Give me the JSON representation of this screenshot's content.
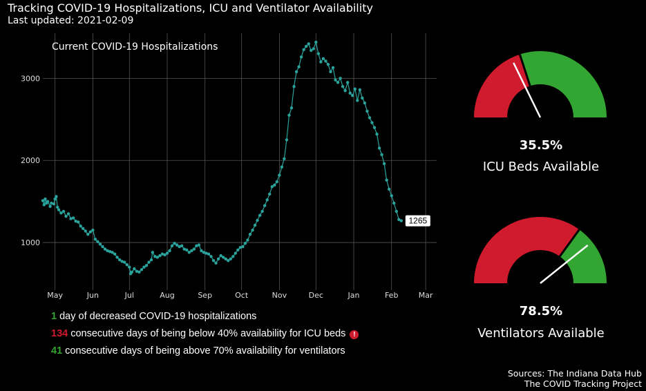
{
  "header": {
    "title": "Tracking COVID-19 Hospitalizations, ICU and Ventilator Availability",
    "subtitle": "Last updated: 2021-02-09"
  },
  "chart_data": {
    "type": "line",
    "title": "Current COVID-19 Hospitalizations",
    "xlabel": "",
    "ylabel": "",
    "x_tick_labels": [
      "May",
      "Jun",
      "Jul",
      "Aug",
      "Sep",
      "Oct",
      "Nov",
      "Dec",
      "Jan",
      "Feb",
      "Mar"
    ],
    "x_tick_dates": [
      "2020-05-01",
      "2020-06-01",
      "2020-07-01",
      "2020-08-01",
      "2020-09-01",
      "2020-10-01",
      "2020-11-01",
      "2020-12-01",
      "2021-01-01",
      "2021-02-01",
      "2021-03-01"
    ],
    "xlim": [
      "2020-04-21",
      "2021-03-10"
    ],
    "y_ticks": [
      1000,
      2000,
      3000
    ],
    "ylim": [
      420,
      3550
    ],
    "grid": true,
    "last_value_label": "1265",
    "series_color": "#2aa39d",
    "points": [
      [
        "2020-04-21",
        1510
      ],
      [
        "2020-04-22",
        1460
      ],
      [
        "2020-04-23",
        1530
      ],
      [
        "2020-04-24",
        1480
      ],
      [
        "2020-04-25",
        1500
      ],
      [
        "2020-04-27",
        1440
      ],
      [
        "2020-04-28",
        1480
      ],
      [
        "2020-04-30",
        1470
      ],
      [
        "2020-05-01",
        1530
      ],
      [
        "2020-05-02",
        1560
      ],
      [
        "2020-05-03",
        1430
      ],
      [
        "2020-05-04",
        1400
      ],
      [
        "2020-05-06",
        1360
      ],
      [
        "2020-05-08",
        1380
      ],
      [
        "2020-05-10",
        1320
      ],
      [
        "2020-05-12",
        1350
      ],
      [
        "2020-05-14",
        1290
      ],
      [
        "2020-05-16",
        1300
      ],
      [
        "2020-05-18",
        1260
      ],
      [
        "2020-05-20",
        1250
      ],
      [
        "2020-05-22",
        1200
      ],
      [
        "2020-05-24",
        1170
      ],
      [
        "2020-05-26",
        1140
      ],
      [
        "2020-05-28",
        1100
      ],
      [
        "2020-05-30",
        1130
      ],
      [
        "2020-06-01",
        1150
      ],
      [
        "2020-06-03",
        1040
      ],
      [
        "2020-06-05",
        1010
      ],
      [
        "2020-06-07",
        980
      ],
      [
        "2020-06-09",
        950
      ],
      [
        "2020-06-11",
        920
      ],
      [
        "2020-06-13",
        900
      ],
      [
        "2020-06-15",
        890
      ],
      [
        "2020-06-17",
        880
      ],
      [
        "2020-06-19",
        860
      ],
      [
        "2020-06-21",
        820
      ],
      [
        "2020-06-23",
        790
      ],
      [
        "2020-06-25",
        770
      ],
      [
        "2020-06-27",
        760
      ],
      [
        "2020-06-29",
        730
      ],
      [
        "2020-07-01",
        700
      ],
      [
        "2020-07-02",
        620
      ],
      [
        "2020-07-03",
        640
      ],
      [
        "2020-07-05",
        680
      ],
      [
        "2020-07-07",
        650
      ],
      [
        "2020-07-09",
        640
      ],
      [
        "2020-07-11",
        670
      ],
      [
        "2020-07-13",
        700
      ],
      [
        "2020-07-15",
        720
      ],
      [
        "2020-07-17",
        760
      ],
      [
        "2020-07-19",
        790
      ],
      [
        "2020-07-20",
        880
      ],
      [
        "2020-07-22",
        830
      ],
      [
        "2020-07-24",
        820
      ],
      [
        "2020-07-26",
        840
      ],
      [
        "2020-07-28",
        860
      ],
      [
        "2020-07-30",
        850
      ],
      [
        "2020-08-01",
        870
      ],
      [
        "2020-08-03",
        900
      ],
      [
        "2020-08-05",
        960
      ],
      [
        "2020-08-07",
        990
      ],
      [
        "2020-08-09",
        970
      ],
      [
        "2020-08-11",
        950
      ],
      [
        "2020-08-13",
        960
      ],
      [
        "2020-08-15",
        920
      ],
      [
        "2020-08-17",
        910
      ],
      [
        "2020-08-19",
        880
      ],
      [
        "2020-08-21",
        900
      ],
      [
        "2020-08-23",
        920
      ],
      [
        "2020-08-25",
        960
      ],
      [
        "2020-08-27",
        970
      ],
      [
        "2020-08-29",
        900
      ],
      [
        "2020-08-31",
        880
      ],
      [
        "2020-09-02",
        870
      ],
      [
        "2020-09-04",
        860
      ],
      [
        "2020-09-06",
        830
      ],
      [
        "2020-09-08",
        780
      ],
      [
        "2020-09-10",
        750
      ],
      [
        "2020-09-12",
        800
      ],
      [
        "2020-09-14",
        840
      ],
      [
        "2020-09-16",
        820
      ],
      [
        "2020-09-18",
        800
      ],
      [
        "2020-09-20",
        780
      ],
      [
        "2020-09-22",
        800
      ],
      [
        "2020-09-24",
        830
      ],
      [
        "2020-09-26",
        870
      ],
      [
        "2020-09-28",
        910
      ],
      [
        "2020-09-30",
        940
      ],
      [
        "2020-10-02",
        950
      ],
      [
        "2020-10-04",
        990
      ],
      [
        "2020-10-06",
        1030
      ],
      [
        "2020-10-08",
        1100
      ],
      [
        "2020-10-10",
        1150
      ],
      [
        "2020-10-12",
        1210
      ],
      [
        "2020-10-14",
        1270
      ],
      [
        "2020-10-16",
        1330
      ],
      [
        "2020-10-18",
        1380
      ],
      [
        "2020-10-20",
        1450
      ],
      [
        "2020-10-22",
        1520
      ],
      [
        "2020-10-24",
        1590
      ],
      [
        "2020-10-26",
        1680
      ],
      [
        "2020-10-28",
        1700
      ],
      [
        "2020-10-30",
        1740
      ],
      [
        "2020-11-01",
        1820
      ],
      [
        "2020-11-03",
        1920
      ],
      [
        "2020-11-05",
        2020
      ],
      [
        "2020-11-07",
        2250
      ],
      [
        "2020-11-09",
        2550
      ],
      [
        "2020-11-11",
        2640
      ],
      [
        "2020-11-13",
        2900
      ],
      [
        "2020-11-15",
        3080
      ],
      [
        "2020-11-17",
        3140
      ],
      [
        "2020-11-19",
        3260
      ],
      [
        "2020-11-21",
        3350
      ],
      [
        "2020-11-23",
        3390
      ],
      [
        "2020-11-25",
        3420
      ],
      [
        "2020-11-27",
        3340
      ],
      [
        "2020-11-29",
        3360
      ],
      [
        "2020-12-01",
        3440
      ],
      [
        "2020-12-03",
        3300
      ],
      [
        "2020-12-05",
        3200
      ],
      [
        "2020-12-07",
        3240
      ],
      [
        "2020-12-09",
        3210
      ],
      [
        "2020-12-11",
        3170
      ],
      [
        "2020-12-13",
        3080
      ],
      [
        "2020-12-15",
        3130
      ],
      [
        "2020-12-17",
        2980
      ],
      [
        "2020-12-19",
        2950
      ],
      [
        "2020-12-21",
        3000
      ],
      [
        "2020-12-23",
        2900
      ],
      [
        "2020-12-25",
        2850
      ],
      [
        "2020-12-27",
        2950
      ],
      [
        "2020-12-29",
        2820
      ],
      [
        "2020-12-31",
        2790
      ],
      [
        "2021-01-02",
        2870
      ],
      [
        "2021-01-04",
        2730
      ],
      [
        "2021-01-06",
        2860
      ],
      [
        "2021-01-08",
        2760
      ],
      [
        "2021-01-10",
        2700
      ],
      [
        "2021-01-12",
        2600
      ],
      [
        "2021-01-14",
        2520
      ],
      [
        "2021-01-16",
        2460
      ],
      [
        "2021-01-18",
        2400
      ],
      [
        "2021-01-20",
        2320
      ],
      [
        "2021-01-22",
        2150
      ],
      [
        "2021-01-24",
        2070
      ],
      [
        "2021-01-26",
        1960
      ],
      [
        "2021-01-28",
        1760
      ],
      [
        "2021-01-30",
        1650
      ],
      [
        "2021-02-01",
        1570
      ],
      [
        "2021-02-03",
        1480
      ],
      [
        "2021-02-05",
        1380
      ],
      [
        "2021-02-07",
        1280
      ],
      [
        "2021-02-09",
        1265
      ]
    ]
  },
  "stats": [
    {
      "number": "1",
      "text": " day of decreased COVID-19 hospitalizations",
      "color": "green"
    },
    {
      "number": "134",
      "text": " consecutive days of being below 40% availability for ICU beds",
      "color": "red",
      "alert_icon": "!"
    },
    {
      "number": "41",
      "text": " consecutive days of being above 70% availability for ventilators",
      "color": "green"
    }
  ],
  "gauges": [
    {
      "percent_value": 35.5,
      "threshold": 40,
      "percent_label": "35.5%",
      "label": "ICU Beds Available"
    },
    {
      "percent_value": 78.5,
      "threshold": 70,
      "percent_label": "78.5%",
      "label": "Ventilators Available"
    }
  ],
  "colors": {
    "red": "#d01a2e",
    "green": "#33a532",
    "grid": "#555555",
    "series": "#2aa39d"
  },
  "sources": {
    "line1": "Sources: The Indiana Data Hub",
    "line2": "The COVID Tracking Project"
  }
}
